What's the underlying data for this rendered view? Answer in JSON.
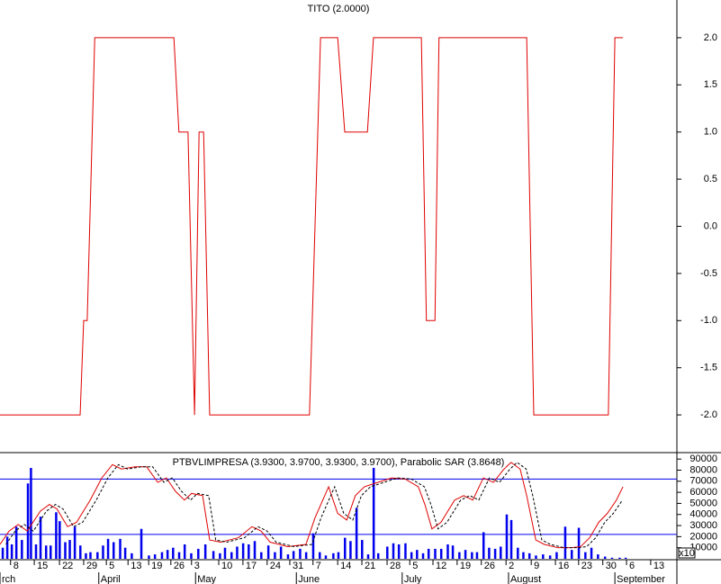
{
  "chart_data": [
    {
      "type": "line",
      "title": "TITO (2.0000)",
      "color": "#e00000",
      "x": [
        0,
        15.9,
        16.6,
        17.3,
        18.8,
        34.5,
        35.5,
        37.3,
        38.6,
        39.5,
        40.4,
        41.6,
        61.4,
        63.6,
        67.0,
        68.4,
        72.9,
        74.1,
        83.6,
        84.6,
        86.3,
        87.1,
        104.5,
        105.9,
        120.7,
        122.0,
        123.6
      ],
      "values": [
        -2,
        -2,
        -1,
        -1,
        2,
        2,
        1,
        1,
        -2,
        1,
        1,
        -2,
        -2,
        2,
        2,
        1,
        1,
        2,
        2,
        -1,
        -1,
        2,
        2,
        -2,
        -2,
        2,
        2
      ],
      "xlim": [
        0,
        134.3
      ],
      "ylim": [
        -2.4,
        2.4
      ],
      "yticks": [
        {
          "value": 2,
          "label": "2.0"
        },
        {
          "value": 1.5,
          "label": "1.5"
        },
        {
          "value": 1,
          "label": "1.0"
        },
        {
          "value": 0.5,
          "label": "0.5"
        },
        {
          "value": 0,
          "label": "0.0"
        },
        {
          "value": -0.5,
          "label": "-0.5"
        },
        {
          "value": -1,
          "label": "-1.0"
        },
        {
          "value": -1.5,
          "label": "-1.5"
        },
        {
          "value": -2,
          "label": "-2.0"
        }
      ]
    },
    {
      "type": "bar",
      "title": "PTBVLIMPRESA (3.9300, 3.9700, 3.9300, 3.9700), Parabolic SAR (3.8648)",
      "color": "#0000ee",
      "x": [
        0.5,
        1.4,
        2.3,
        3.2,
        4.3,
        5.5,
        6.1,
        7.1,
        8.0,
        9.1,
        10.0,
        11.1,
        11.8,
        12.9,
        13.8,
        14.8,
        15.9,
        17.0,
        17.9,
        19.3,
        20.4,
        21.4,
        22.5,
        23.8,
        24.8,
        26.1,
        28.0,
        29.5,
        30.7,
        32.1,
        33.2,
        34.3,
        35.5,
        36.6,
        37.9,
        39.3,
        40.7,
        42.3,
        43.6,
        44.6,
        45.9,
        47.0,
        48.2,
        49.3,
        50.5,
        51.8,
        53.2,
        54.5,
        55.7,
        57.1,
        58.2,
        59.5,
        60.7,
        62.1,
        63.4,
        64.6,
        66.1,
        67.1,
        68.4,
        69.5,
        70.7,
        71.8,
        73.0,
        74.1,
        75.0,
        76.8,
        78.0,
        79.1,
        80.4,
        81.6,
        82.7,
        83.9,
        85.0,
        86.3,
        87.5,
        88.8,
        89.8,
        91.1,
        92.3,
        93.6,
        94.6,
        95.9,
        97.0,
        98.2,
        99.3,
        100.5,
        101.4,
        102.7,
        103.8,
        105.0,
        106.3,
        107.7,
        109.1,
        110.4,
        112.1,
        113.4,
        114.8,
        116.1,
        117.3,
        118.6,
        120.0,
        121.4,
        122.9,
        124.1
      ],
      "values": [
        10000,
        20000,
        13000,
        29000,
        17000,
        68000,
        82000,
        13000,
        38000,
        12000,
        12000,
        42000,
        34000,
        15000,
        17000,
        29000,
        12000,
        5000,
        6000,
        6000,
        12000,
        18000,
        15000,
        18000,
        10000,
        5000,
        27000,
        3000,
        4000,
        6000,
        8000,
        10000,
        6000,
        13000,
        5000,
        9000,
        13000,
        7000,
        5000,
        10000,
        6000,
        11000,
        14000,
        13000,
        16000,
        6000,
        12000,
        6000,
        11000,
        4000,
        7000,
        9000,
        6000,
        23000,
        6000,
        3000,
        5000,
        6000,
        19000,
        16000,
        46000,
        17000,
        4000,
        88000,
        5000,
        11000,
        14000,
        13000,
        14000,
        6000,
        8000,
        5000,
        9000,
        9000,
        9000,
        13000,
        12000,
        6000,
        8000,
        6000,
        6000,
        24000,
        10000,
        9000,
        11000,
        40000,
        35000,
        10000,
        6000,
        5000,
        3000,
        4000,
        3000,
        6000,
        29000,
        8000,
        28000,
        6000,
        10000,
        4000,
        2000,
        1000,
        1000,
        1000
      ],
      "lines": [
        {
          "color": "#e00000",
          "dash": false,
          "x": [
            0,
            1.8,
            3.6,
            5.4,
            8.0,
            9.8,
            11.3,
            13.4,
            15.2,
            17.9,
            20.2,
            22.3,
            24.1,
            26.8,
            29.1,
            31.3,
            33.0,
            34.8,
            36.6,
            38.0,
            40.2,
            41.6,
            43.8,
            45.5,
            47.3,
            50.0,
            51.8,
            53.6,
            55.4,
            57.1,
            60.7,
            62.5,
            65.2,
            67.0,
            68.8,
            70.5,
            72.3,
            75.0,
            77.7,
            80.4,
            83.0,
            84.3,
            85.7,
            87.5,
            90.2,
            92.0,
            93.8,
            95.9,
            97.9,
            100.0,
            101.4,
            103.2,
            104.5,
            106.3,
            108.0,
            110.7,
            113.4,
            115.2,
            117.0,
            118.8,
            120.5,
            122.3,
            123.6
          ],
          "values": [
            13000,
            25000,
            31000,
            25000,
            43000,
            49000,
            45000,
            29000,
            33000,
            53000,
            73000,
            85000,
            81000,
            83000,
            83000,
            69000,
            73000,
            61000,
            53000,
            59000,
            57000,
            17000,
            15000,
            17000,
            19000,
            29000,
            25000,
            15000,
            13000,
            11000,
            13000,
            37000,
            65000,
            41000,
            35000,
            57000,
            65000,
            69000,
            73000,
            72000,
            65000,
            49000,
            27000,
            33000,
            53000,
            57000,
            53000,
            73000,
            69000,
            81000,
            87000,
            81000,
            57000,
            17000,
            13000,
            10000,
            10000,
            11000,
            19000,
            33000,
            41000,
            53000,
            65000
          ]
        },
        {
          "color": "#000000",
          "dash": true,
          "x": [
            1.2,
            3.0,
            4.8,
            6.6,
            9.2,
            11.0,
            12.5,
            14.6,
            16.4,
            19.1,
            21.4,
            23.5,
            25.3,
            28.0,
            30.3,
            32.5,
            34.2,
            36.0,
            37.8,
            39.2,
            41.4,
            42.8,
            45.0,
            46.7,
            48.5,
            51.2,
            53.0,
            54.8,
            56.6,
            58.3,
            61.9,
            63.7,
            66.4,
            68.2,
            70.0,
            71.7,
            73.5,
            76.2,
            78.9,
            81.6,
            84.2,
            85.5,
            86.9,
            88.7,
            91.4,
            93.2,
            95.0,
            97.1,
            99.1,
            101.2,
            102.6,
            104.4,
            105.7,
            107.5,
            109.2,
            111.9,
            114.6,
            116.4,
            118.2,
            120.0,
            121.7,
            123.5
          ],
          "values": [
            13000,
            25000,
            31000,
            25000,
            43000,
            49000,
            45000,
            29000,
            33000,
            53000,
            73000,
            85000,
            81000,
            83000,
            83000,
            69000,
            73000,
            61000,
            53000,
            59000,
            57000,
            17000,
            15000,
            17000,
            19000,
            29000,
            25000,
            15000,
            13000,
            11000,
            13000,
            37000,
            65000,
            41000,
            35000,
            57000,
            65000,
            69000,
            73000,
            72000,
            65000,
            49000,
            27000,
            33000,
            53000,
            57000,
            53000,
            73000,
            69000,
            81000,
            87000,
            81000,
            57000,
            17000,
            13000,
            10000,
            10000,
            11000,
            19000,
            33000,
            41000,
            53000
          ]
        }
      ],
      "hlines": [
        72000,
        22000
      ],
      "hline_color": "#0000ee",
      "xlim": [
        0,
        134.3
      ],
      "ylim": [
        0,
        95000
      ],
      "yticks": [
        10000,
        20000,
        30000,
        40000,
        50000,
        60000,
        70000,
        80000,
        90000
      ],
      "unit_label": "x10",
      "xticks": [
        {
          "value": 2.1,
          "label": "8"
        },
        {
          "value": 6.8,
          "label": "15"
        },
        {
          "value": 11.8,
          "label": "22"
        },
        {
          "value": 16.6,
          "label": "29"
        },
        {
          "value": 21.1,
          "label": "5"
        },
        {
          "value": 25.4,
          "label": "13"
        },
        {
          "value": 29.5,
          "label": "19"
        },
        {
          "value": 33.9,
          "label": "26"
        },
        {
          "value": 38.0,
          "label": "3"
        },
        {
          "value": 43.4,
          "label": "10"
        },
        {
          "value": 48.2,
          "label": "17"
        },
        {
          "value": 53.0,
          "label": "24"
        },
        {
          "value": 57.5,
          "label": "31"
        },
        {
          "value": 62.1,
          "label": "7"
        },
        {
          "value": 67.0,
          "label": "14"
        },
        {
          "value": 71.8,
          "label": "21"
        },
        {
          "value": 76.8,
          "label": "28"
        },
        {
          "value": 81.3,
          "label": "5"
        },
        {
          "value": 85.9,
          "label": "12"
        },
        {
          "value": 90.7,
          "label": "19"
        },
        {
          "value": 95.5,
          "label": "26"
        },
        {
          "value": 100.4,
          "label": "2"
        },
        {
          "value": 105.4,
          "label": "9"
        },
        {
          "value": 110.2,
          "label": "16"
        },
        {
          "value": 114.8,
          "label": "23"
        },
        {
          "value": 119.6,
          "label": "30"
        },
        {
          "value": 124.3,
          "label": "6"
        },
        {
          "value": 129.1,
          "label": "13"
        }
      ],
      "months": [
        {
          "value": 0,
          "label": "rch"
        },
        {
          "value": 19.6,
          "label": "April"
        },
        {
          "value": 38.8,
          "label": "May"
        },
        {
          "value": 58.8,
          "label": "June"
        },
        {
          "value": 79.8,
          "label": "July"
        },
        {
          "value": 100.9,
          "label": "August"
        },
        {
          "value": 122.0,
          "label": "September"
        }
      ]
    }
  ]
}
